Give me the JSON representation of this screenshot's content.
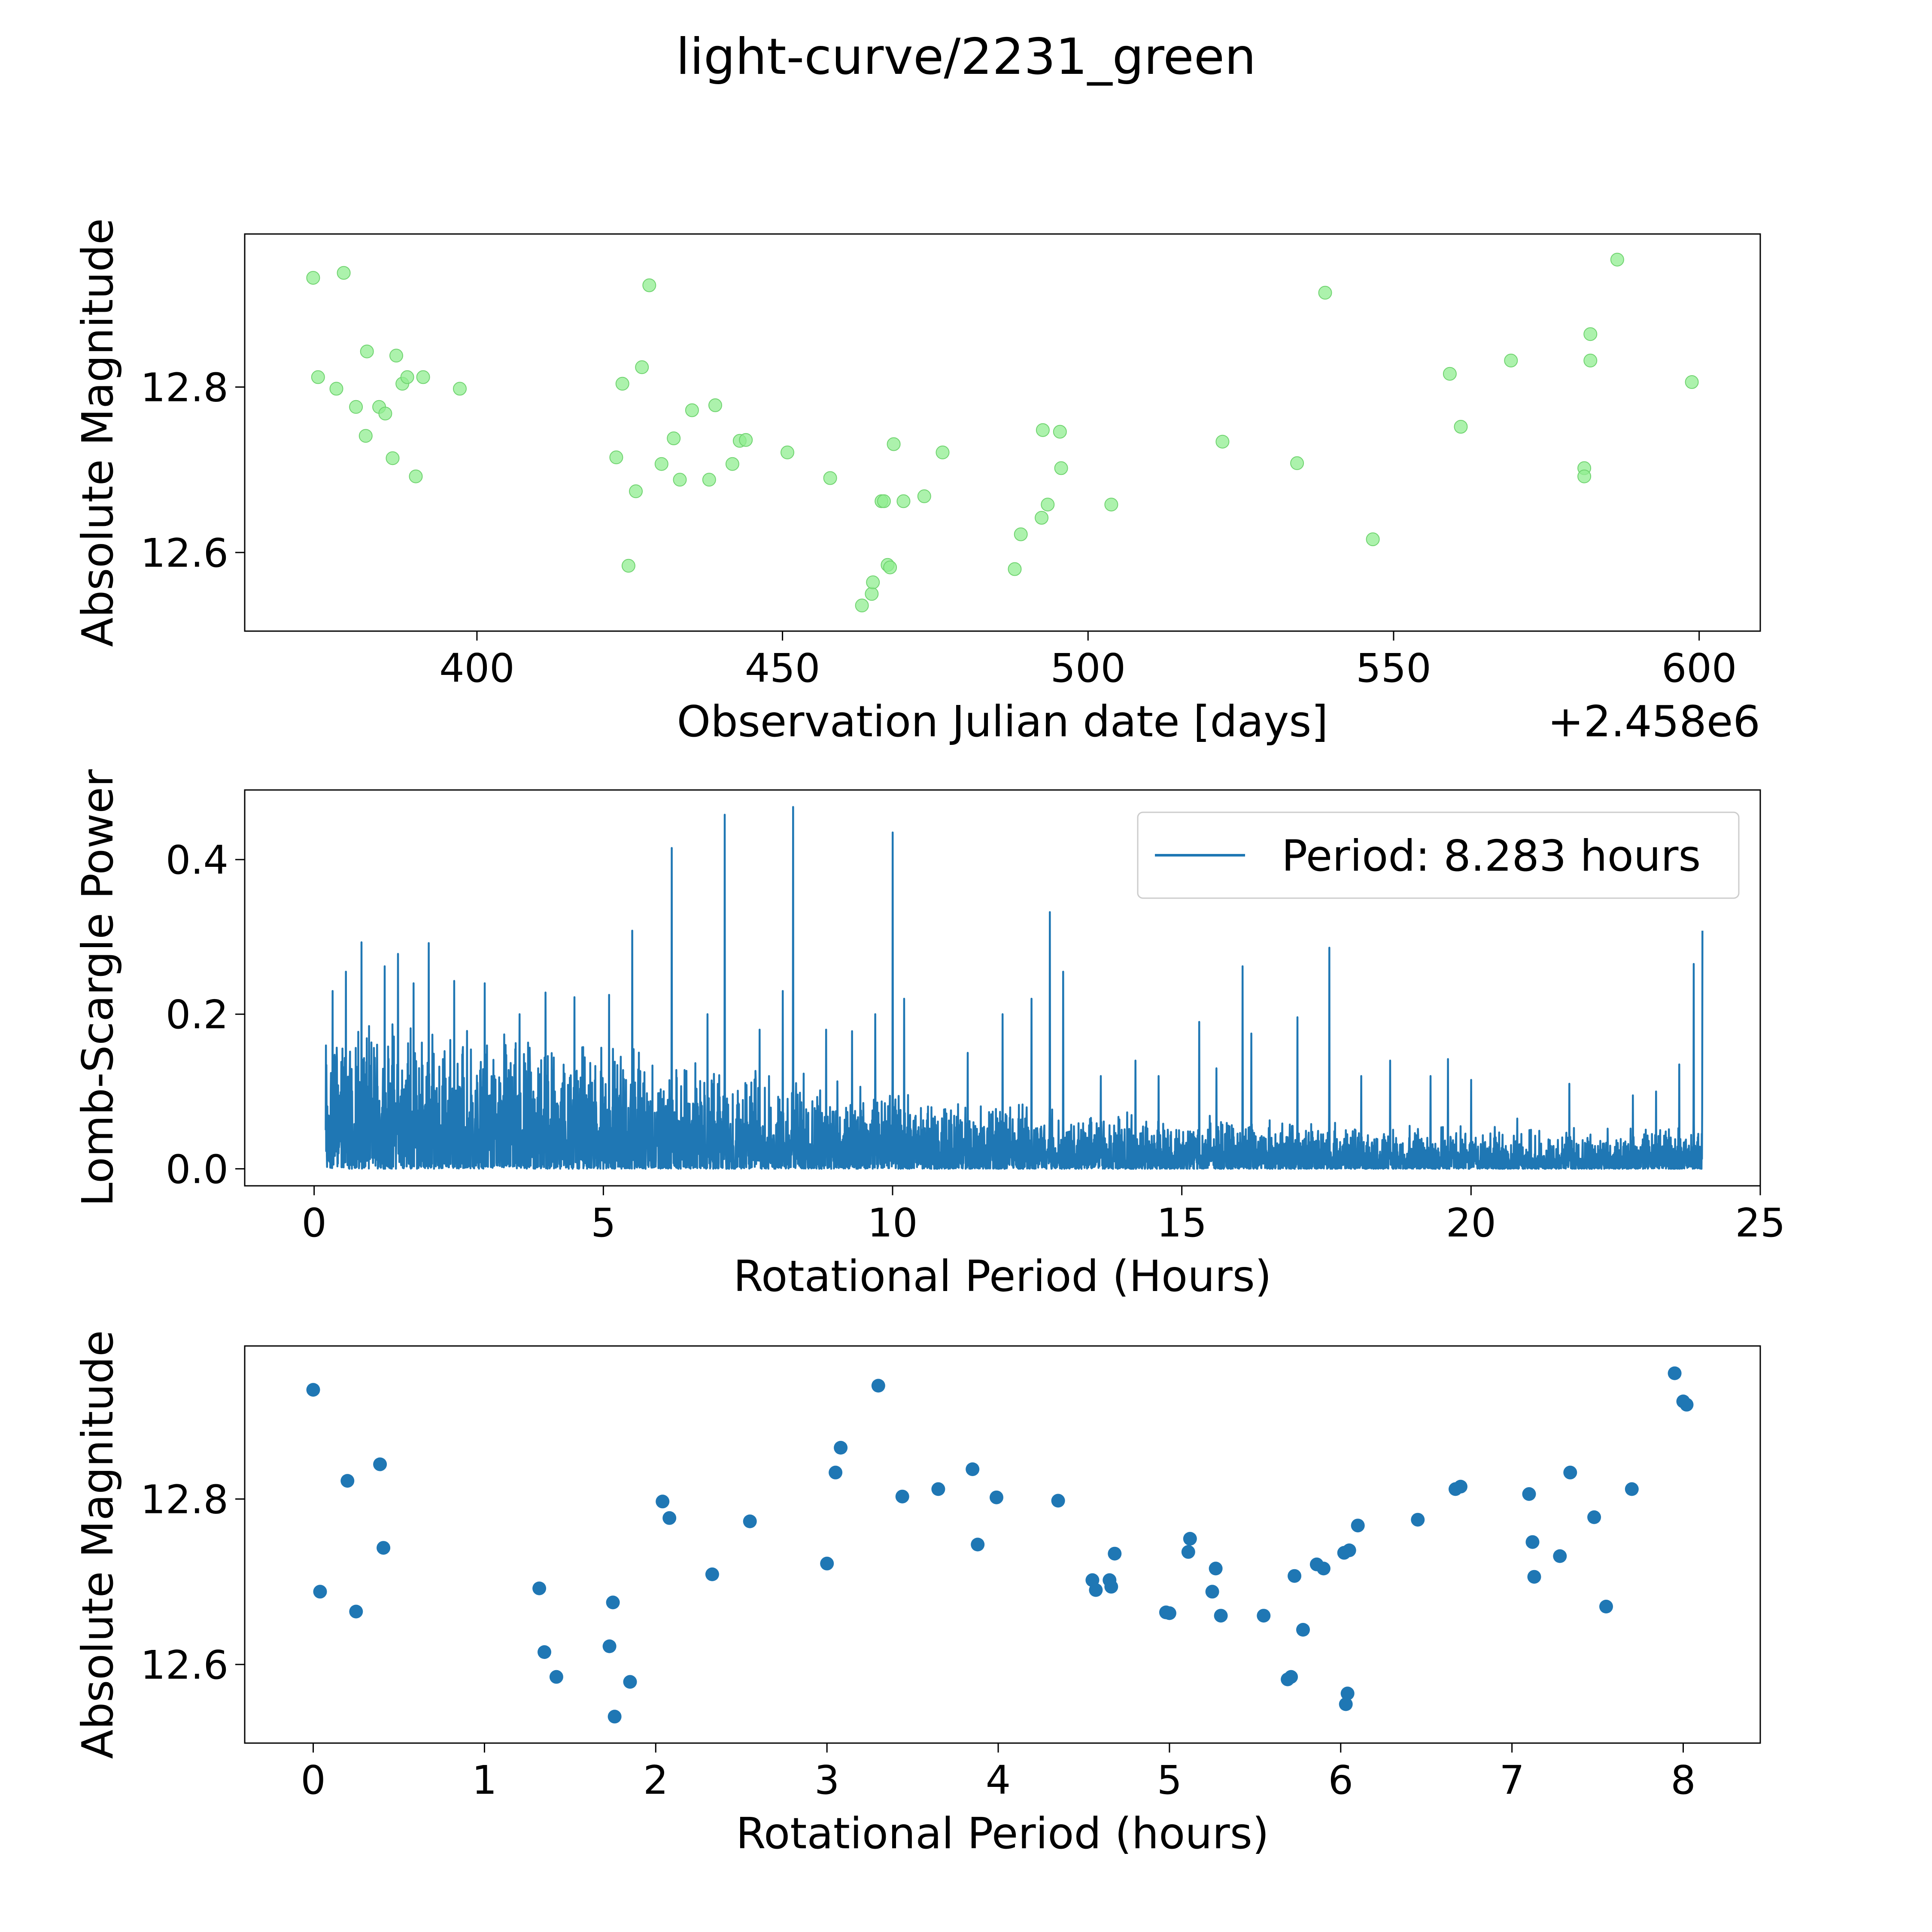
{
  "title": "light-curve/2231_green",
  "colors": {
    "green": "#90ee90",
    "blue": "#1f77b4",
    "frame": "#000000"
  },
  "chart_data": [
    {
      "type": "scatter",
      "name": "observations",
      "xlabel": "Observation Julian date [days]",
      "ylabel": "Absolute Magnitude",
      "offset_label": "+2.458e6",
      "xlim": [
        362,
        610
      ],
      "ylim": [
        12.505,
        12.985
      ],
      "xticks": [
        400,
        450,
        500,
        550,
        600
      ],
      "xtick_labels": [
        "400",
        "450",
        "500",
        "550",
        "600"
      ],
      "yticks": [
        12.6,
        12.8
      ],
      "ytick_labels": [
        "12.6",
        "12.8"
      ],
      "points": [
        [
          373.2,
          12.932
        ],
        [
          374.0,
          12.812
        ],
        [
          377.0,
          12.798
        ],
        [
          378.2,
          12.938
        ],
        [
          380.2,
          12.776
        ],
        [
          381.8,
          12.741
        ],
        [
          382.0,
          12.843
        ],
        [
          384.0,
          12.776
        ],
        [
          385.0,
          12.768
        ],
        [
          386.2,
          12.714
        ],
        [
          386.8,
          12.838
        ],
        [
          387.8,
          12.804
        ],
        [
          388.6,
          12.812
        ],
        [
          390.0,
          12.692
        ],
        [
          391.2,
          12.812
        ],
        [
          397.2,
          12.798
        ],
        [
          422.8,
          12.715
        ],
        [
          423.8,
          12.804
        ],
        [
          424.8,
          12.584
        ],
        [
          426.0,
          12.674
        ],
        [
          427.0,
          12.824
        ],
        [
          428.2,
          12.923
        ],
        [
          430.2,
          12.707
        ],
        [
          432.2,
          12.738
        ],
        [
          433.2,
          12.688
        ],
        [
          435.2,
          12.772
        ],
        [
          438.0,
          12.688
        ],
        [
          439.0,
          12.778
        ],
        [
          441.8,
          12.707
        ],
        [
          443.0,
          12.735
        ],
        [
          444.0,
          12.736
        ],
        [
          450.8,
          12.721
        ],
        [
          457.8,
          12.69
        ],
        [
          463.0,
          12.536
        ],
        [
          464.6,
          12.55
        ],
        [
          464.8,
          12.564
        ],
        [
          466.2,
          12.662
        ],
        [
          466.6,
          12.662
        ],
        [
          467.2,
          12.585
        ],
        [
          467.6,
          12.582
        ],
        [
          468.2,
          12.731
        ],
        [
          469.8,
          12.662
        ],
        [
          473.2,
          12.668
        ],
        [
          476.2,
          12.721
        ],
        [
          488.0,
          12.58
        ],
        [
          489.0,
          12.622
        ],
        [
          492.4,
          12.642
        ],
        [
          492.6,
          12.748
        ],
        [
          493.4,
          12.658
        ],
        [
          495.4,
          12.746
        ],
        [
          495.6,
          12.702
        ],
        [
          503.8,
          12.658
        ],
        [
          522.0,
          12.734
        ],
        [
          534.2,
          12.708
        ],
        [
          538.8,
          12.914
        ],
        [
          546.6,
          12.616
        ],
        [
          559.2,
          12.816
        ],
        [
          561.0,
          12.752
        ],
        [
          569.2,
          12.832
        ],
        [
          581.2,
          12.702
        ],
        [
          581.2,
          12.692
        ],
        [
          582.2,
          12.864
        ],
        [
          582.2,
          12.832
        ],
        [
          586.6,
          12.954
        ],
        [
          598.8,
          12.806
        ]
      ]
    },
    {
      "type": "line",
      "name": "periodogram",
      "xlabel": "Rotational Period (Hours)",
      "ylabel": "Lomb-Scargle Power",
      "xlim": [
        -1.2,
        25.0
      ],
      "ylim": [
        -0.022,
        0.49
      ],
      "xticks": [
        0,
        5,
        10,
        15,
        20,
        25
      ],
      "xtick_labels": [
        "0",
        "5",
        "10",
        "15",
        "20",
        "25"
      ],
      "yticks": [
        0.0,
        0.2,
        0.4
      ],
      "ytick_labels": [
        "0.0",
        "0.2",
        "0.4"
      ],
      "legend_label": "Period: 8.283 hours",
      "legend_position": "upper right",
      "x_range": [
        0.2,
        24.0
      ],
      "baseline_envelope": [
        [
          0.2,
          0.17
        ],
        [
          3.0,
          0.16
        ],
        [
          6.0,
          0.13
        ],
        [
          10.0,
          0.09
        ],
        [
          14.0,
          0.07
        ],
        [
          18.0,
          0.05
        ],
        [
          22.0,
          0.045
        ],
        [
          24.0,
          0.05
        ]
      ],
      "peaks": [
        [
          0.32,
          0.23
        ],
        [
          0.55,
          0.255
        ],
        [
          0.82,
          0.293
        ],
        [
          1.22,
          0.262
        ],
        [
          1.45,
          0.278
        ],
        [
          1.72,
          0.24
        ],
        [
          1.98,
          0.292
        ],
        [
          2.42,
          0.243
        ],
        [
          2.95,
          0.24
        ],
        [
          3.55,
          0.2
        ],
        [
          4.0,
          0.228
        ],
        [
          4.5,
          0.222
        ],
        [
          5.1,
          0.225
        ],
        [
          5.5,
          0.308
        ],
        [
          6.18,
          0.415
        ],
        [
          6.8,
          0.2
        ],
        [
          7.1,
          0.458
        ],
        [
          7.7,
          0.18
        ],
        [
          8.1,
          0.23
        ],
        [
          8.28,
          0.468
        ],
        [
          8.85,
          0.18
        ],
        [
          9.3,
          0.178
        ],
        [
          9.7,
          0.2
        ],
        [
          10.0,
          0.435
        ],
        [
          10.2,
          0.22
        ],
        [
          11.3,
          0.15
        ],
        [
          11.9,
          0.2
        ],
        [
          12.4,
          0.22
        ],
        [
          12.72,
          0.332
        ],
        [
          12.95,
          0.255
        ],
        [
          13.6,
          0.12
        ],
        [
          14.2,
          0.14
        ],
        [
          14.6,
          0.12
        ],
        [
          15.3,
          0.19
        ],
        [
          15.6,
          0.13
        ],
        [
          16.05,
          0.262
        ],
        [
          16.2,
          0.175
        ],
        [
          17.0,
          0.196
        ],
        [
          17.55,
          0.286
        ],
        [
          18.1,
          0.12
        ],
        [
          18.6,
          0.14
        ],
        [
          19.3,
          0.12
        ],
        [
          19.6,
          0.142
        ],
        [
          20.0,
          0.115
        ],
        [
          20.8,
          0.065
        ],
        [
          21.7,
          0.11
        ],
        [
          22.8,
          0.095
        ],
        [
          23.2,
          0.1
        ],
        [
          23.6,
          0.135
        ],
        [
          23.85,
          0.265
        ],
        [
          24.0,
          0.308
        ]
      ]
    },
    {
      "type": "scatter",
      "name": "folded",
      "xlabel": "Rotational Period (hours)",
      "ylabel": "Absolute Magnitude",
      "xlim": [
        -0.4,
        8.45
      ],
      "ylim": [
        12.505,
        12.985
      ],
      "xticks": [
        0,
        1,
        2,
        3,
        4,
        5,
        6,
        7,
        8
      ],
      "xtick_labels": [
        "0",
        "1",
        "2",
        "3",
        "4",
        "5",
        "6",
        "7",
        "8"
      ],
      "yticks": [
        12.6,
        12.8
      ],
      "ytick_labels": [
        "12.6",
        "12.8"
      ],
      "points": [
        [
          0.0,
          12.932
        ],
        [
          0.04,
          12.688
        ],
        [
          0.2,
          12.822
        ],
        [
          0.25,
          12.664
        ],
        [
          0.39,
          12.842
        ],
        [
          0.41,
          12.741
        ],
        [
          1.32,
          12.692
        ],
        [
          1.35,
          12.615
        ],
        [
          1.42,
          12.585
        ],
        [
          1.73,
          12.622
        ],
        [
          1.75,
          12.675
        ],
        [
          1.76,
          12.537
        ],
        [
          1.85,
          12.579
        ],
        [
          2.04,
          12.797
        ],
        [
          2.08,
          12.777
        ],
        [
          2.33,
          12.709
        ],
        [
          2.55,
          12.773
        ],
        [
          3.0,
          12.722
        ],
        [
          3.05,
          12.832
        ],
        [
          3.08,
          12.862
        ],
        [
          3.3,
          12.937
        ],
        [
          3.44,
          12.803
        ],
        [
          3.65,
          12.812
        ],
        [
          3.85,
          12.836
        ],
        [
          3.88,
          12.745
        ],
        [
          3.99,
          12.802
        ],
        [
          4.35,
          12.798
        ],
        [
          4.55,
          12.702
        ],
        [
          4.57,
          12.69
        ],
        [
          4.65,
          12.702
        ],
        [
          4.66,
          12.694
        ],
        [
          4.68,
          12.734
        ],
        [
          4.98,
          12.663
        ],
        [
          5.0,
          12.662
        ],
        [
          5.11,
          12.736
        ],
        [
          5.12,
          12.752
        ],
        [
          5.25,
          12.688
        ],
        [
          5.27,
          12.716
        ],
        [
          5.3,
          12.659
        ],
        [
          5.55,
          12.659
        ],
        [
          5.69,
          12.582
        ],
        [
          5.71,
          12.585
        ],
        [
          5.73,
          12.707
        ],
        [
          5.78,
          12.642
        ],
        [
          5.86,
          12.721
        ],
        [
          5.9,
          12.716
        ],
        [
          6.02,
          12.735
        ],
        [
          6.03,
          12.552
        ],
        [
          6.04,
          12.565
        ],
        [
          6.05,
          12.738
        ],
        [
          6.1,
          12.768
        ],
        [
          6.45,
          12.775
        ],
        [
          6.67,
          12.812
        ],
        [
          6.7,
          12.815
        ],
        [
          7.1,
          12.806
        ],
        [
          7.12,
          12.748
        ],
        [
          7.13,
          12.706
        ],
        [
          7.28,
          12.731
        ],
        [
          7.34,
          12.832
        ],
        [
          7.48,
          12.778
        ],
        [
          7.55,
          12.67
        ],
        [
          7.7,
          12.812
        ],
        [
          7.95,
          12.952
        ],
        [
          8.0,
          12.918
        ],
        [
          8.02,
          12.914
        ]
      ]
    }
  ]
}
